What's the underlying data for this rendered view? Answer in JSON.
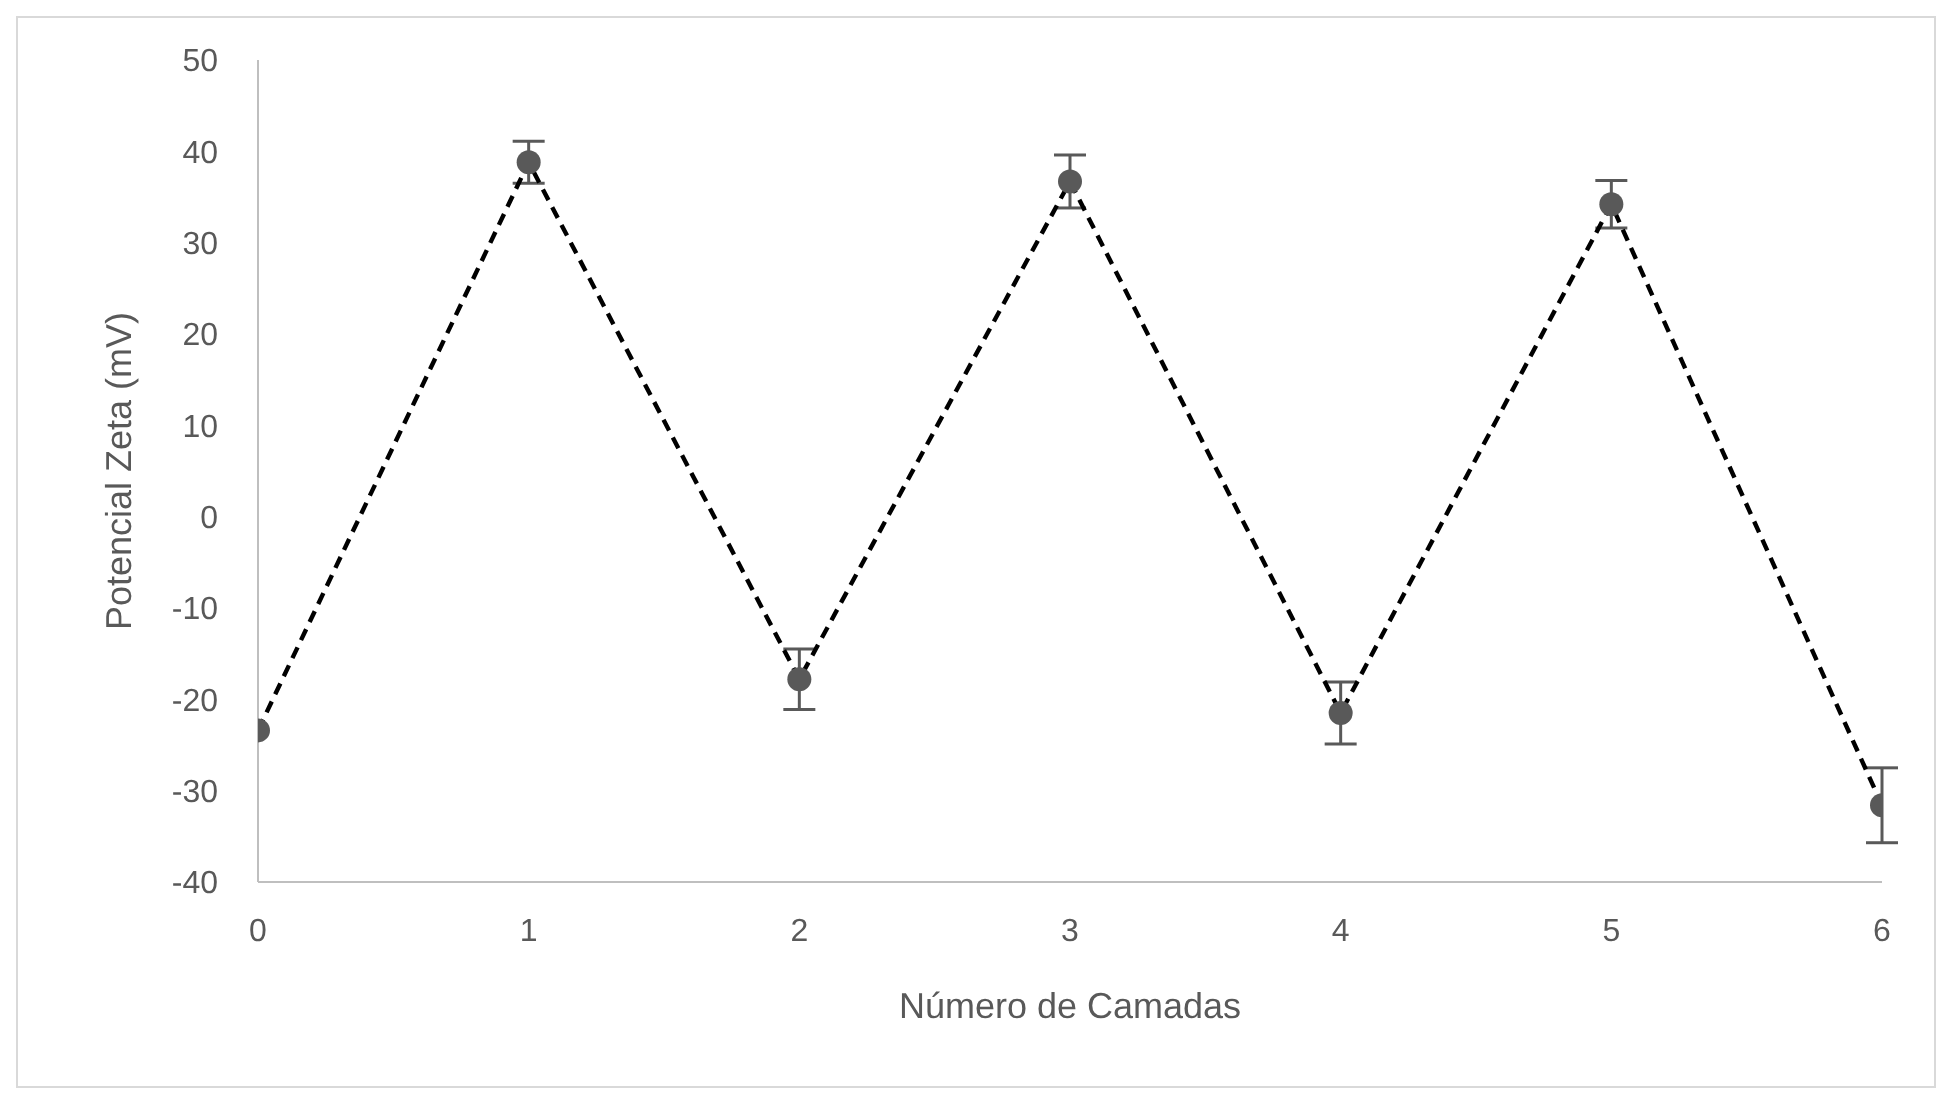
{
  "chart_data": {
    "type": "line",
    "xlabel": "Número de Camadas",
    "ylabel": "Potencial Zeta (mV)",
    "x": [
      0,
      1,
      2,
      3,
      4,
      5,
      6
    ],
    "series": [
      {
        "color": "#000000",
        "values": [
          -23.4,
          38.8,
          -17.8,
          36.7,
          -21.5,
          34.2,
          -31.6
        ],
        "errors": [
          null,
          2.3,
          3.3,
          2.9,
          3.4,
          2.6,
          4.1
        ]
      }
    ],
    "xlim": [
      0,
      6
    ],
    "xticks": [
      0,
      1,
      2,
      3,
      4,
      5,
      6
    ],
    "ylim": [
      -40,
      50
    ],
    "yticks": [
      -40,
      -30,
      -20,
      -10,
      0,
      10,
      20,
      30,
      40,
      50
    ],
    "grid": false,
    "legend": false,
    "marker": "circle",
    "line_style": "dashed"
  }
}
